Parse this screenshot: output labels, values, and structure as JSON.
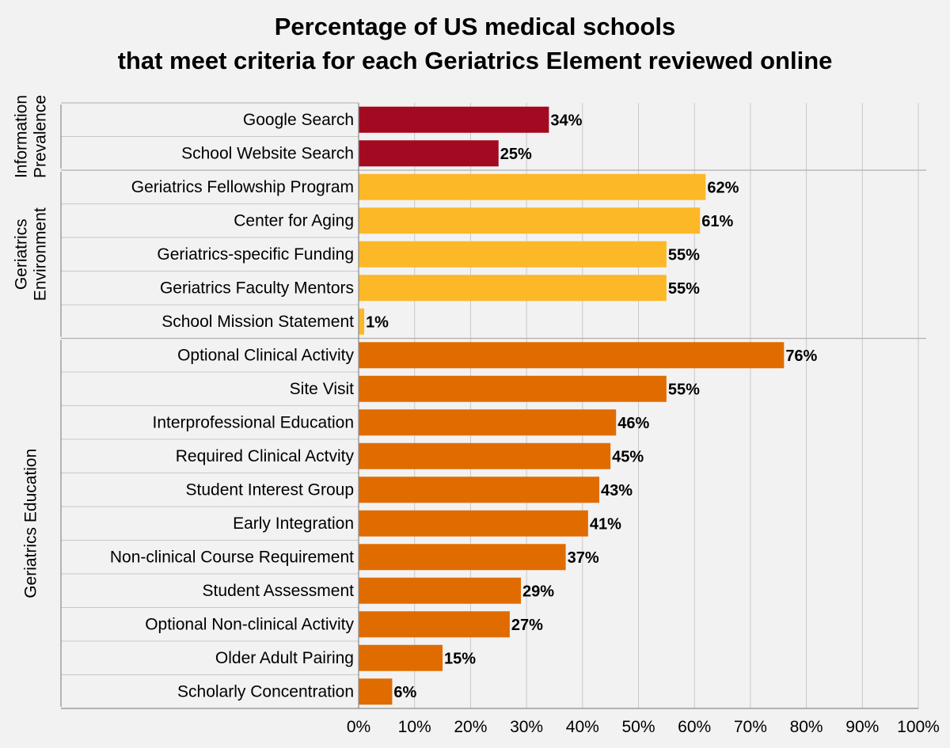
{
  "chart_data": {
    "type": "bar",
    "orientation": "horizontal",
    "title_lines": [
      "Percentage of US medical schools",
      "that meet criteria for each Geriatrics Element reviewed online"
    ],
    "xlim": [
      0,
      100
    ],
    "x_ticks": [
      "0%",
      "10%",
      "20%",
      "30%",
      "40%",
      "50%",
      "60%",
      "70%",
      "80%",
      "90%",
      "100%"
    ],
    "grid": "vertical",
    "value_suffix": "%",
    "groups": [
      {
        "label_lines": [
          "Information",
          "Prevalence"
        ],
        "color": "#a30a22",
        "items": [
          {
            "label": "Google Search",
            "value": 34
          },
          {
            "label": "School Website Search",
            "value": 25
          }
        ]
      },
      {
        "label_lines": [
          "Geriatrics",
          "Environment"
        ],
        "color": "#fdb827",
        "items": [
          {
            "label": "Geriatrics Fellowship Program",
            "value": 62
          },
          {
            "label": "Center for Aging",
            "value": 61
          },
          {
            "label": "Geriatrics-specific Funding",
            "value": 55
          },
          {
            "label": "Geriatrics Faculty Mentors",
            "value": 55
          },
          {
            "label": "School Mission Statement",
            "value": 1
          }
        ]
      },
      {
        "label_lines": [
          "Geriatrics Education"
        ],
        "color": "#e06c00",
        "items": [
          {
            "label": "Optional Clinical Activity",
            "value": 76
          },
          {
            "label": "Site Visit",
            "value": 55
          },
          {
            "label": "Interprofessional Education",
            "value": 46
          },
          {
            "label": "Required Clinical Actvity",
            "value": 45
          },
          {
            "label": "Student Interest Group",
            "value": 43
          },
          {
            "label": "Early Integration",
            "value": 41
          },
          {
            "label": "Non-clinical Course Requirement",
            "value": 37
          },
          {
            "label": "Student Assessment",
            "value": 29
          },
          {
            "label": "Optional Non-clinical Activity",
            "value": 27
          },
          {
            "label": "Older Adult Pairing",
            "value": 15
          },
          {
            "label": "Scholarly Concentration",
            "value": 6
          }
        ]
      }
    ]
  }
}
